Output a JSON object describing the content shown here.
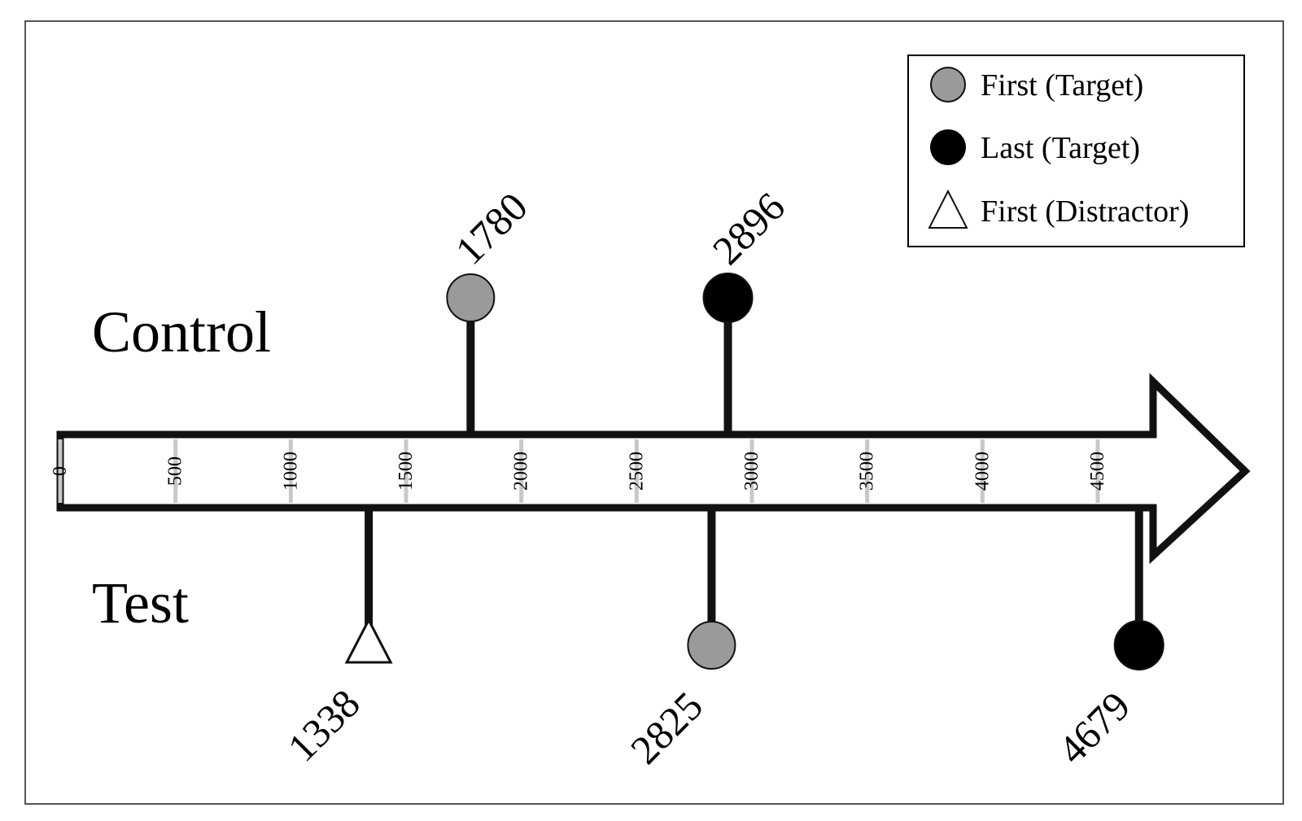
{
  "chart_data": {
    "type": "timeline",
    "groups": [
      {
        "key": "control",
        "label": "Control"
      },
      {
        "key": "test",
        "label": "Test"
      }
    ],
    "axis": {
      "ticks": [
        0,
        500,
        1000,
        1500,
        2000,
        2500,
        3000,
        3500,
        4000,
        4500
      ],
      "tick_labels": [
        "0",
        "500",
        "1000",
        "1500",
        "2000",
        "2500",
        "3000",
        "3500",
        "4000",
        "4500"
      ]
    },
    "legend": {
      "position": "top-right",
      "entries": [
        {
          "marker": "gray-circle",
          "label": "First (Target)"
        },
        {
          "marker": "black-circle",
          "label": "Last (Target)"
        },
        {
          "marker": "white-triangle",
          "label": "First (Distractor)"
        }
      ]
    },
    "events": [
      {
        "group": "control",
        "marker": "gray-circle",
        "value": 1780,
        "label": "1780"
      },
      {
        "group": "control",
        "marker": "black-circle",
        "value": 2896,
        "label": "2896"
      },
      {
        "group": "test",
        "marker": "white-triangle",
        "value": 1338,
        "label": "1338"
      },
      {
        "group": "test",
        "marker": "gray-circle",
        "value": 2825,
        "label": "2825"
      },
      {
        "group": "test",
        "marker": "black-circle",
        "value": 4679,
        "label": "4679"
      }
    ],
    "colors": {
      "gray-circle": "#9a9a9a",
      "black-circle": "#000000",
      "white-triangle": "#ffffff",
      "stroke": "#111111",
      "tick": "#c8c8c8"
    }
  }
}
